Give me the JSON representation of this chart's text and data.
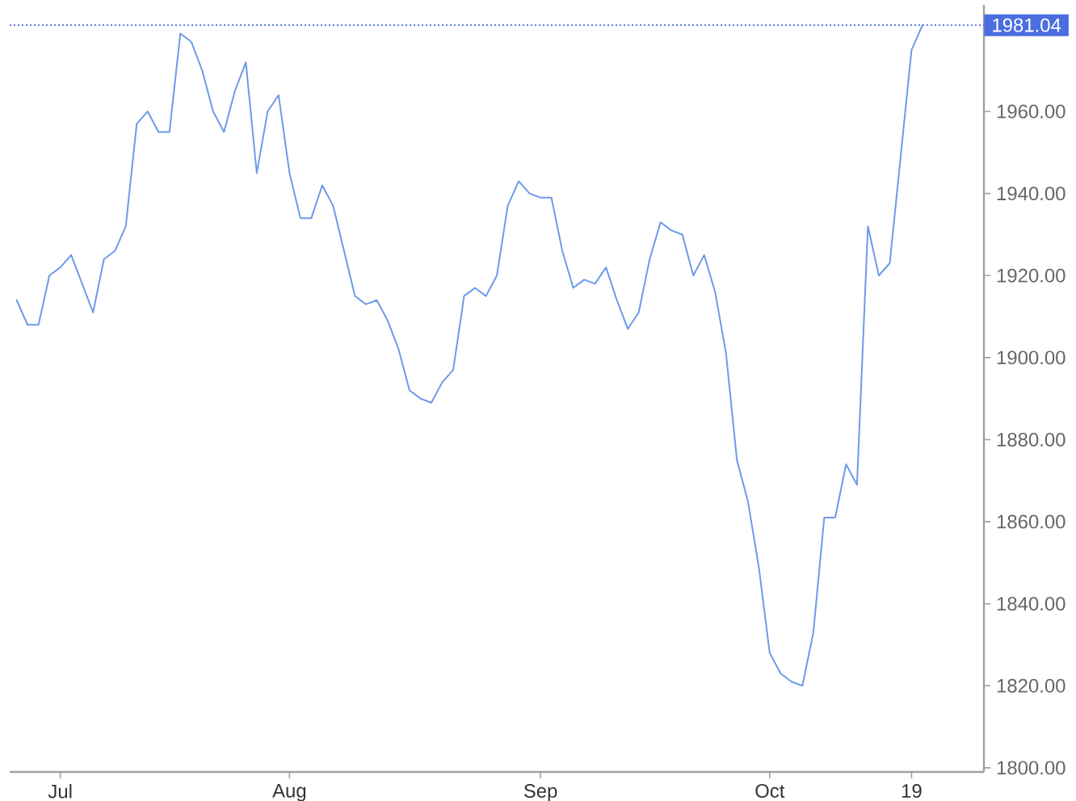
{
  "chart_data": {
    "type": "line",
    "categories": [
      null,
      null,
      null,
      null,
      "Jul",
      null,
      null,
      null,
      null,
      null,
      null,
      null,
      null,
      null,
      null,
      null,
      null,
      null,
      null,
      null,
      null,
      null,
      null,
      null,
      null,
      "Aug",
      null,
      null,
      null,
      null,
      null,
      null,
      null,
      null,
      null,
      null,
      null,
      null,
      null,
      null,
      null,
      null,
      null,
      null,
      null,
      null,
      null,
      null,
      "Sep",
      null,
      null,
      null,
      null,
      null,
      null,
      null,
      null,
      null,
      null,
      null,
      null,
      null,
      null,
      null,
      null,
      null,
      null,
      null,
      null,
      "Oct",
      null,
      null,
      null,
      null,
      null,
      null,
      null,
      null,
      null,
      null,
      null,
      null,
      "19",
      null
    ],
    "values": [
      1914,
      1908,
      1908,
      1920,
      1922,
      1925,
      1918,
      1911,
      1924,
      1926,
      1932,
      1957,
      1960,
      1955,
      1955,
      1979,
      1977,
      1970,
      1960,
      1955,
      1965,
      1972,
      1945,
      1960,
      1964,
      1945,
      1934,
      1934,
      1942,
      1937,
      1926,
      1915,
      1913,
      1914,
      1909,
      1902,
      1892,
      1890,
      1889,
      1894,
      1897,
      1915,
      1917,
      1915,
      1920,
      1937,
      1943,
      1940,
      1939,
      1939,
      1926,
      1917,
      1919,
      1918,
      1922,
      1914,
      1907,
      1911,
      1924,
      1933,
      1931,
      1930,
      1920,
      1925,
      1916,
      1901,
      1875,
      1865,
      1849,
      1828,
      1823,
      1821,
      1820,
      1833,
      1861,
      1861,
      1874,
      1869,
      1932,
      1920,
      1923,
      1949,
      1975,
      1981.04
    ],
    "color": "#6d9be8",
    "ylim": [
      1799,
      1986
    ],
    "yticks": [
      {
        "value": 1800,
        "label": "1800.00"
      },
      {
        "value": 1820,
        "label": "1820.00"
      },
      {
        "value": 1840,
        "label": "1840.00"
      },
      {
        "value": 1860,
        "label": "1860.00"
      },
      {
        "value": 1880,
        "label": "1880.00"
      },
      {
        "value": 1900,
        "label": "1900.00"
      },
      {
        "value": 1920,
        "label": "1920.00"
      },
      {
        "value": 1940,
        "label": "1940.00"
      },
      {
        "value": 1960,
        "label": "1960.00"
      }
    ],
    "ref_lines": [
      {
        "axis": "y",
        "value": 1981.04,
        "label": "1981.04",
        "color": "#4a6ee0",
        "line_style": "dotted"
      }
    ]
  }
}
